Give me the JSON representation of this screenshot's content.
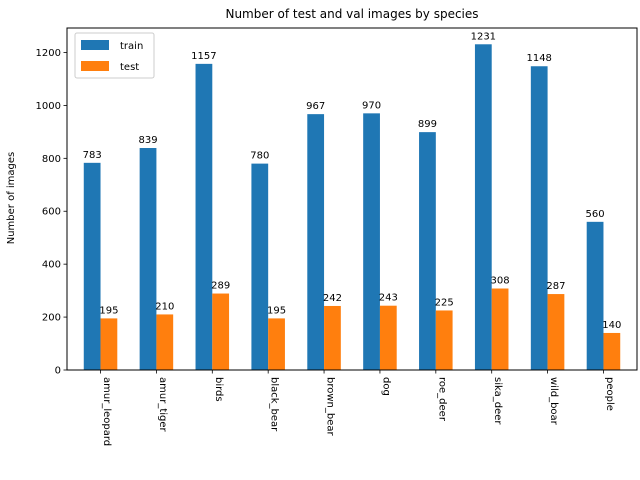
{
  "chart_data": {
    "type": "bar",
    "title": "Number of test and val images by species",
    "xlabel": "",
    "ylabel": "Number of images",
    "categories": [
      "amur_leopard",
      "amur_tiger",
      "birds",
      "black_bear",
      "brown_bear",
      "dog",
      "roe_deer",
      "sika_deer",
      "wild_boar",
      "people"
    ],
    "series": [
      {
        "name": "train",
        "color": "#1f77b4",
        "values": [
          783,
          839,
          1157,
          780,
          967,
          970,
          899,
          1231,
          1148,
          560
        ]
      },
      {
        "name": "test",
        "color": "#ff7f0e",
        "values": [
          195,
          210,
          289,
          195,
          242,
          243,
          225,
          308,
          287,
          140
        ]
      }
    ],
    "ylim": [
      0,
      1292.55
    ],
    "yticks": [
      0,
      200,
      400,
      600,
      800,
      1000,
      1200
    ],
    "x_tick_rotation_deg": 90,
    "legend": {
      "position": "top-left"
    },
    "grid": false
  }
}
